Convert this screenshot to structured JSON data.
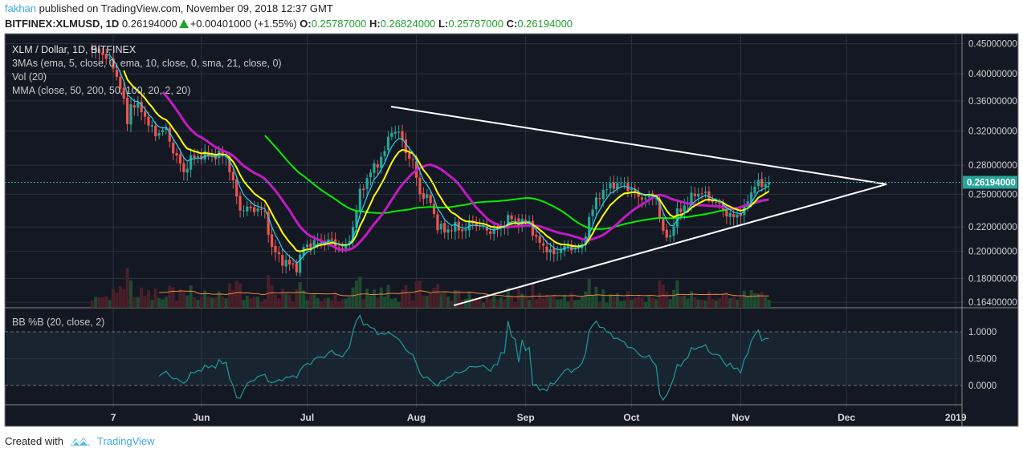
{
  "header": {
    "user": "fakhan",
    "published": "published on TradingView.com, November 09, 2018 12:37 GMT",
    "symbol": "BITFINEX:XLMUSD, 1D",
    "last": "0.26194000",
    "change": "+0.00401000 (+1.55%)",
    "o_label": "O:",
    "o": "0.25787000",
    "h_label": "H:",
    "h": "0.26824000",
    "l_label": "L:",
    "l": "0.25787000",
    "c_label": "C:",
    "c": "0.26194000"
  },
  "legend": {
    "title": "XLM / Dollar, 1D, BITFINEX",
    "ma3": "3MAs (ema, 5, close, 0, ema, 10, close, 0, sma, 21, close, 0)",
    "vol": "Vol (20)",
    "mma": "MMA (close, 50, 200, 50, 100, 20, 2, 20)",
    "bb": "BB %B (20, close, 2)"
  },
  "footer": {
    "created": "Created with",
    "brand": "TradingView"
  },
  "colors": {
    "up": "#26a69a",
    "down": "#ef5350",
    "ema5": "#22d3ee",
    "ema10": "#ffff00",
    "sma21": "#c21bc2",
    "sma50": "#00f000",
    "bb": "#1e9a9a",
    "trend": "#ffffff",
    "vol_ma": "#f0883e",
    "bg": "#141823"
  },
  "chart_data": {
    "type": "candlestick",
    "title": "XLM / Dollar, 1D, BITFINEX",
    "start_date": "2018-05-01",
    "scale": "log",
    "ylim": [
      0.1605,
      0.468
    ],
    "y_ticks": [
      {
        "v": 0.45,
        "label": "0.45000000"
      },
      {
        "v": 0.4,
        "label": "0.40000000"
      },
      {
        "v": 0.36,
        "label": "0.36000000"
      },
      {
        "v": 0.32,
        "label": "0.32000000"
      },
      {
        "v": 0.28,
        "label": "0.28000000"
      },
      {
        "v": 0.25,
        "label": "0.25000000"
      },
      {
        "v": 0.22,
        "label": "0.22000000"
      },
      {
        "v": 0.2,
        "label": "0.20000000"
      },
      {
        "v": 0.18,
        "label": "0.18000000"
      },
      {
        "v": 0.164,
        "label": "0.16400000"
      }
    ],
    "last_price": {
      "v": 0.26194,
      "label": "0.26194000"
    },
    "x_ticks": [
      {
        "day": 6,
        "label": "7"
      },
      {
        "day": 31,
        "label": "Jun"
      },
      {
        "day": 61,
        "label": "Jul"
      },
      {
        "day": 92,
        "label": "Aug"
      },
      {
        "day": 123,
        "label": "Sep"
      },
      {
        "day": 153,
        "label": "Oct"
      },
      {
        "day": 184,
        "label": "Nov"
      },
      {
        "day": 214,
        "label": "Dec"
      },
      {
        "day": 245,
        "label": "2019"
      }
    ],
    "close_anchors_day_price": [
      [
        0,
        0.44
      ],
      [
        3,
        0.433
      ],
      [
        6,
        0.412
      ],
      [
        8,
        0.38
      ],
      [
        10,
        0.333
      ],
      [
        11,
        0.355
      ],
      [
        14,
        0.349
      ],
      [
        16,
        0.328
      ],
      [
        18,
        0.317
      ],
      [
        21,
        0.322
      ],
      [
        23,
        0.296
      ],
      [
        26,
        0.273
      ],
      [
        28,
        0.287
      ],
      [
        31,
        0.291
      ],
      [
        34,
        0.291
      ],
      [
        38,
        0.291
      ],
      [
        40,
        0.26
      ],
      [
        42,
        0.236
      ],
      [
        45,
        0.236
      ],
      [
        47,
        0.236
      ],
      [
        49,
        0.232
      ],
      [
        51,
        0.202
      ],
      [
        54,
        0.193
      ],
      [
        56,
        0.19
      ],
      [
        58,
        0.188
      ],
      [
        60,
        0.203
      ],
      [
        64,
        0.209
      ],
      [
        67,
        0.209
      ],
      [
        71,
        0.202
      ],
      [
        72,
        0.202
      ],
      [
        74,
        0.22
      ],
      [
        76,
        0.251
      ],
      [
        79,
        0.273
      ],
      [
        81,
        0.282
      ],
      [
        83,
        0.296
      ],
      [
        85,
        0.322
      ],
      [
        87,
        0.317
      ],
      [
        89,
        0.296
      ],
      [
        91,
        0.282
      ],
      [
        93,
        0.251
      ],
      [
        96,
        0.243
      ],
      [
        98,
        0.22
      ],
      [
        100,
        0.217
      ],
      [
        103,
        0.22
      ],
      [
        105,
        0.217
      ],
      [
        108,
        0.224
      ],
      [
        112,
        0.217
      ],
      [
        115,
        0.217
      ],
      [
        118,
        0.228
      ],
      [
        121,
        0.224
      ],
      [
        124,
        0.224
      ],
      [
        126,
        0.209
      ],
      [
        129,
        0.202
      ],
      [
        131,
        0.197
      ],
      [
        133,
        0.203
      ],
      [
        137,
        0.203
      ],
      [
        139,
        0.203
      ],
      [
        141,
        0.228
      ],
      [
        144,
        0.251
      ],
      [
        146,
        0.255
      ],
      [
        148,
        0.26
      ],
      [
        150,
        0.26
      ],
      [
        153,
        0.255
      ],
      [
        155,
        0.247
      ],
      [
        157,
        0.247
      ],
      [
        160,
        0.247
      ],
      [
        162,
        0.213
      ],
      [
        164,
        0.213
      ],
      [
        166,
        0.232
      ],
      [
        169,
        0.243
      ],
      [
        171,
        0.251
      ],
      [
        173,
        0.251
      ],
      [
        175,
        0.247
      ],
      [
        178,
        0.239
      ],
      [
        180,
        0.232
      ],
      [
        182,
        0.228
      ],
      [
        185,
        0.236
      ],
      [
        187,
        0.251
      ],
      [
        188,
        0.262
      ],
      [
        190,
        0.258
      ],
      [
        192,
        0.26194
      ]
    ],
    "trendlines": [
      {
        "name": "upper",
        "from": [
          84.8,
          0.352
        ],
        "to": [
          225.4,
          0.26
        ]
      },
      {
        "name": "lower",
        "from": [
          102.6,
          0.162
        ],
        "to": [
          225.4,
          0.26
        ]
      }
    ],
    "indicators": [
      "ema 5",
      "ema 10",
      "sma 21",
      "sma 50",
      "volume",
      "volume sma 20",
      "BB %B 20,2"
    ],
    "bb_ticks": [
      {
        "v": 1,
        "label": "1.0000"
      },
      {
        "v": 0.5,
        "label": "0.5000"
      },
      {
        "v": 0,
        "label": "0.0000"
      }
    ]
  }
}
